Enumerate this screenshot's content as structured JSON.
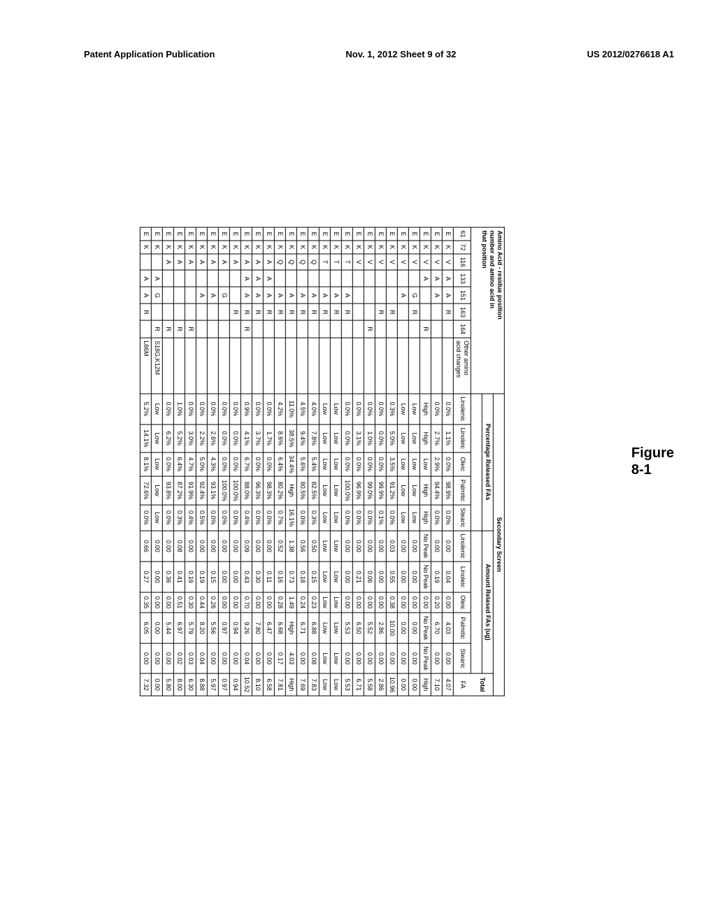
{
  "header": {
    "left": "Patent Application Publication",
    "center": "Nov. 1, 2012  Sheet 9 of 32",
    "right": "US 2012/0276618 A1"
  },
  "figure_label": {
    "line1": "Figure",
    "line2": "8-1"
  },
  "caption_block": {
    "l1": "Amino Acid - residue position",
    "l2": "number and amino acid in",
    "l3": "that position"
  },
  "secondary_screen_label": "Secondary Screen",
  "group_headers": {
    "percentage": "Percentage Released FAs",
    "amount": "Amount Relased FAs (ug)"
  },
  "aa_col_headers": [
    "61",
    "72",
    "116",
    "133",
    "151",
    "163",
    "164"
  ],
  "other_amino_h1": "Other amino",
  "other_amino_h2": "acid changes",
  "fa_cols": [
    "Linolenic",
    "Linoleic",
    "Oleic",
    "Palmitic",
    "Stearic"
  ],
  "total_fa_h1": "Total",
  "total_fa_h2": "FA",
  "rows": [
    {
      "aa": [
        "E",
        "K",
        "V",
        "A",
        "A",
        "R",
        ""
      ],
      "other": "",
      "pct": [
        "0.0%",
        "1.1%",
        "0.0%",
        "98.9%",
        "0.0%"
      ],
      "amt": [
        "0.00",
        "0.04",
        "0.00",
        "4.03",
        "0.00"
      ],
      "tot": "4.07"
    },
    {
      "aa": [
        "E",
        "K",
        "V",
        "A",
        "A",
        "",
        ""
      ],
      "other": "",
      "pct": [
        "0.0%",
        "2.7%",
        "2.9%",
        "94.4%",
        "0.0%"
      ],
      "amt": [
        "0.00",
        "0.19",
        "0.20",
        "6.70",
        "0.00"
      ],
      "tot": "7.10"
    },
    {
      "aa": [
        "E",
        "K",
        "V",
        "A",
        "",
        "",
        "R"
      ],
      "other": "",
      "pct": [
        "High",
        "High",
        "Low",
        "High",
        "High"
      ],
      "amt": [
        "No Peak",
        "No Peak",
        "0.00",
        "No Peak",
        "No Peak"
      ],
      "tot": "High"
    },
    {
      "aa": [
        "E",
        "K",
        "V",
        "",
        "G",
        "R",
        ""
      ],
      "other": "",
      "pct": [
        "Low",
        "Low",
        "Low",
        "Low",
        "Low"
      ],
      "amt": [
        "0.00",
        "0.00",
        "0.00",
        "0.00",
        "0.00"
      ],
      "tot": "0.00"
    },
    {
      "aa": [
        "E",
        "K",
        "V",
        "",
        "A",
        "",
        ""
      ],
      "other": "",
      "pct": [
        "Low",
        "Low",
        "Low",
        "Low",
        "Low"
      ],
      "amt": [
        "0.00",
        "0.00",
        "0.00",
        "0.00",
        "0.00"
      ],
      "tot": "0.00"
    },
    {
      "aa": [
        "E",
        "K",
        "V",
        "",
        "",
        "R",
        ""
      ],
      "other": "",
      "pct": [
        "0.3%",
        "5.0%",
        "3.5%",
        "91.2%",
        "0.0%"
      ],
      "amt": [
        "0.03",
        "0.55",
        "0.38",
        "10.00",
        "0.00"
      ],
      "tot": "10.96"
    },
    {
      "aa": [
        "E",
        "K",
        "V",
        "",
        "",
        "R",
        ""
      ],
      "other": "",
      "pct": [
        "0.0%",
        "0.0%",
        "0.0%",
        "99.9%",
        "0.1%"
      ],
      "amt": [
        "0.00",
        "0.00",
        "0.00",
        "2.86",
        "0.00"
      ],
      "tot": "2.86"
    },
    {
      "aa": [
        "E",
        "K",
        "V",
        "",
        "",
        "",
        "R"
      ],
      "other": "",
      "pct": [
        "0.0%",
        "1.0%",
        "0.0%",
        "99.0%",
        "0.0%"
      ],
      "amt": [
        "0.00",
        "0.06",
        "0.00",
        "5.52",
        "0.00"
      ],
      "tot": "5.58"
    },
    {
      "aa": [
        "E",
        "K",
        "V",
        "",
        "",
        "",
        ""
      ],
      "other": "",
      "pct": [
        "0.0%",
        "3.1%",
        "0.0%",
        "96.9%",
        "0.0%"
      ],
      "amt": [
        "0.00",
        "0.21",
        "0.00",
        "6.50",
        "0.00"
      ],
      "tot": "6.71"
    },
    {
      "aa": [
        "E",
        "K",
        "T",
        "",
        "A",
        "R",
        ""
      ],
      "other": "",
      "pct": [
        "0.0%",
        "0.0%",
        "0.0%",
        "100.0%",
        "0.0%"
      ],
      "amt": [
        "0.00",
        "0.00",
        "0.00",
        "5.53",
        "0.00"
      ],
      "tot": "5.53"
    },
    {
      "aa": [
        "E",
        "K",
        "T",
        "",
        "A",
        "R",
        ""
      ],
      "other": "",
      "pct": [
        "Low",
        "Low",
        "Low",
        "Low",
        "Low"
      ],
      "amt": [
        "Low",
        "Low",
        "Low",
        "Low",
        "Low"
      ],
      "tot": "Low"
    },
    {
      "aa": [
        "E",
        "K",
        "T",
        "",
        "A",
        "R",
        ""
      ],
      "other": "",
      "pct": [
        "Low",
        "Low",
        "Low",
        "Low",
        "Low"
      ],
      "amt": [
        "Low",
        "Low",
        "Low",
        "Low",
        "Low"
      ],
      "tot": "Low"
    },
    {
      "aa": [
        "E",
        "K",
        "Q",
        "",
        "A",
        "R",
        ""
      ],
      "other": "",
      "pct": [
        "4.0%",
        "7.8%",
        "5.4%",
        "82.5%",
        "0.3%"
      ],
      "amt": [
        "0.50",
        "0.15",
        "0.23",
        "6.88",
        "0.08"
      ],
      "tot": "7.83"
    },
    {
      "aa": [
        "E",
        "K",
        "Q",
        "",
        "A",
        "R",
        ""
      ],
      "other": "",
      "pct": [
        "4.5%",
        "9.4%",
        "5.6%",
        "80.5%",
        "0.0%"
      ],
      "amt": [
        "0.56",
        "0.18",
        "0.24",
        "6.71",
        "0.00"
      ],
      "tot": "7.69"
    },
    {
      "aa": [
        "E",
        "K",
        "Q",
        "",
        "A",
        "R",
        ""
      ],
      "other": "",
      "pct": [
        "11.0%",
        "38.5%",
        "34.4%",
        "High",
        "16.1%"
      ],
      "amt": [
        "1.38",
        "0.73",
        "1.49",
        "High",
        "4.03"
      ],
      "tot": "High"
    },
    {
      "aa": [
        "E",
        "K",
        "Q",
        "",
        "A",
        "R",
        ""
      ],
      "other": "",
      "pct": [
        "4.2%",
        "8.6%",
        "6.4%",
        "80.2%",
        "0.7%"
      ],
      "amt": [
        "0.52",
        "0.16",
        "0.28",
        "6.68",
        "0.17"
      ],
      "tot": "7.81"
    },
    {
      "aa": [
        "E",
        "K",
        "A",
        "A",
        "A",
        "R",
        ""
      ],
      "other": "",
      "pct": [
        "0.0%",
        "1.7%",
        "0.0%",
        "98.3%",
        "0.0%"
      ],
      "amt": [
        "0.00",
        "0.11",
        "0.00",
        "6.47",
        "0.00"
      ],
      "tot": "6.58"
    },
    {
      "aa": [
        "E",
        "K",
        "A",
        "A",
        "A",
        "R",
        ""
      ],
      "other": "",
      "pct": [
        "0.0%",
        "3.7%",
        "0.0%",
        "96.3%",
        "0.0%"
      ],
      "amt": [
        "0.00",
        "0.30",
        "0.00",
        "7.80",
        "0.00"
      ],
      "tot": "8.10"
    },
    {
      "aa": [
        "E",
        "K",
        "A",
        "A",
        "A",
        "R",
        "R"
      ],
      "other": "",
      "pct": [
        "0.9%",
        "4.1%",
        "6.7%",
        "88.0%",
        "0.4%"
      ],
      "amt": [
        "0.09",
        "0.43",
        "0.70",
        "9.26",
        "0.04"
      ],
      "tot": "10.52"
    },
    {
      "aa": [
        "E",
        "K",
        "A",
        "",
        "",
        "R",
        ""
      ],
      "other": "",
      "pct": [
        "0.0%",
        "0.0%",
        "0.0%",
        "100.0%",
        "0.0%"
      ],
      "amt": [
        "0.00",
        "0.00",
        "0.00",
        "0.94",
        "0.00"
      ],
      "tot": "0.94"
    },
    {
      "aa": [
        "E",
        "K",
        "A",
        "",
        "G",
        "",
        ""
      ],
      "other": "",
      "pct": [
        "0.0%",
        "0.0%",
        "0.0%",
        "100.0%",
        "0.0%"
      ],
      "amt": [
        "0.00",
        "0.00",
        "0.00",
        "0.97",
        "0.00"
      ],
      "tot": "0.97"
    },
    {
      "aa": [
        "E",
        "K",
        "A",
        "",
        "A",
        "",
        ""
      ],
      "other": "",
      "pct": [
        "0.0%",
        "2.6%",
        "4.3%",
        "93.1%",
        "0.0%"
      ],
      "amt": [
        "0.00",
        "0.15",
        "0.26",
        "5.56",
        "0.00"
      ],
      "tot": "5.97"
    },
    {
      "aa": [
        "E",
        "K",
        "A",
        "",
        "A",
        "",
        ""
      ],
      "other": "",
      "pct": [
        "0.0%",
        "2.2%",
        "5.0%",
        "92.4%",
        "0.5%"
      ],
      "amt": [
        "0.00",
        "0.19",
        "0.44",
        "8.20",
        "0.04"
      ],
      "tot": "8.88"
    },
    {
      "aa": [
        "E",
        "K",
        "A",
        "",
        "",
        "",
        "R"
      ],
      "other": "",
      "pct": [
        "0.0%",
        "3.0%",
        "4.7%",
        "91.9%",
        "0.4%"
      ],
      "amt": [
        "0.00",
        "0.19",
        "0.30",
        "5.79",
        "0.03"
      ],
      "tot": "6.30"
    },
    {
      "aa": [
        "E",
        "K",
        "A",
        "",
        "",
        "",
        "R"
      ],
      "other": "",
      "pct": [
        "1.0%",
        "5.2%",
        "6.4%",
        "87.2%",
        "0.3%"
      ],
      "amt": [
        "0.08",
        "0.41",
        "0.51",
        "6.97",
        "0.02"
      ],
      "tot": "8.00"
    },
    {
      "aa": [
        "E",
        "K",
        "A",
        "",
        "",
        "",
        "R"
      ],
      "other": "",
      "pct": [
        "0.0%",
        "6.2%",
        "0.0%",
        "93.8%",
        "0.0%"
      ],
      "amt": [
        "0.00",
        "0.36",
        "0.00",
        "5.44",
        "0.00"
      ],
      "tot": "5.80"
    },
    {
      "aa": [
        "E",
        "K",
        "",
        "A",
        "G",
        "",
        "R"
      ],
      "other": "S18G,K12M",
      "pct": [
        "Low",
        "Low",
        "Low",
        "Low",
        "Low"
      ],
      "amt": [
        "0.00",
        "0.00",
        "0.00",
        "0.00",
        "0.00"
      ],
      "tot": "0.00"
    },
    {
      "aa": [
        "E",
        "K",
        "",
        "A",
        "A",
        "R",
        ""
      ],
      "other": "L86M",
      "pct": [
        "5.2%",
        "14.1%",
        "8.1%",
        "72.6%",
        "0.0%"
      ],
      "amt": [
        "0.66",
        "0.27",
        "0.35",
        "6.05",
        "0.00"
      ],
      "tot": "7.32"
    }
  ]
}
